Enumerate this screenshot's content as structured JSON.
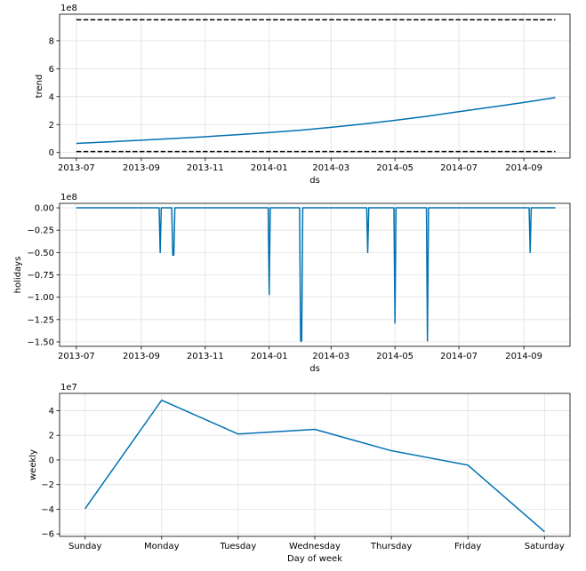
{
  "chart_data": [
    {
      "type": "line",
      "ylabel": "trend",
      "xlabel": "ds",
      "y_offset_label": "1e8",
      "y_scale": 100000000,
      "grid": true,
      "xlim": [
        "2013-06-15",
        "2014-10-15"
      ],
      "ylim": [
        -0.4,
        9.9
      ],
      "x_ticks": [
        "2013-07-01",
        "2013-09-01",
        "2013-11-01",
        "2014-01-01",
        "2014-03-01",
        "2014-05-01",
        "2014-07-01",
        "2014-09-01"
      ],
      "x_tick_labels": [
        "2013-07",
        "2013-09",
        "2013-11",
        "2014-01",
        "2014-03",
        "2014-05",
        "2014-07",
        "2014-09"
      ],
      "y_ticks": [
        0,
        2,
        4,
        6,
        8
      ],
      "y_tick_labels": [
        "0",
        "2",
        "4",
        "6",
        "8"
      ],
      "series": [
        {
          "style": "solid",
          "color": "#0072B2",
          "x": [
            "2013-07-01",
            "2013-08-01",
            "2013-09-01",
            "2013-10-01",
            "2013-11-01",
            "2013-12-01",
            "2014-01-01",
            "2014-02-01",
            "2014-03-01",
            "2014-04-01",
            "2014-05-01",
            "2014-06-01",
            "2014-07-01",
            "2014-08-01",
            "2014-09-01",
            "2014-10-01"
          ],
          "y": [
            0.65,
            0.76,
            0.88,
            1.0,
            1.13,
            1.27,
            1.43,
            1.6,
            1.8,
            2.04,
            2.3,
            2.6,
            2.92,
            3.25,
            3.58,
            3.93
          ]
        },
        {
          "style": "dashed",
          "color": "#000000",
          "x": [
            "2013-07-01",
            "2014-10-01"
          ],
          "y": [
            9.5,
            9.5
          ]
        },
        {
          "style": "dashed",
          "color": "#000000",
          "x": [
            "2013-07-01",
            "2014-10-01"
          ],
          "y": [
            0.07,
            0.07
          ]
        }
      ]
    },
    {
      "type": "line",
      "ylabel": "holidays",
      "xlabel": "ds",
      "y_offset_label": "1e8",
      "y_scale": 100000000,
      "grid": true,
      "xlim": [
        "2013-06-15",
        "2014-10-15"
      ],
      "ylim": [
        -1.55,
        0.05
      ],
      "x_ticks": [
        "2013-07-01",
        "2013-09-01",
        "2013-11-01",
        "2014-01-01",
        "2014-03-01",
        "2014-05-01",
        "2014-07-01",
        "2014-09-01"
      ],
      "x_tick_labels": [
        "2013-07",
        "2013-09",
        "2013-11",
        "2014-01",
        "2014-03",
        "2014-05",
        "2014-07",
        "2014-09"
      ],
      "y_ticks": [
        0,
        -0.25,
        -0.5,
        -0.75,
        -1.0,
        -1.25,
        -1.5
      ],
      "y_tick_labels": [
        "0.00",
        "−0.25",
        "−0.50",
        "−0.75",
        "−1.00",
        "−1.25",
        "−1.50"
      ],
      "series": [
        {
          "style": "solid",
          "color": "#0072B2",
          "x": [
            "2013-07-01",
            "2013-09-18",
            "2013-09-19",
            "2013-09-20",
            "2013-09-30",
            "2013-10-01",
            "2013-10-02",
            "2013-10-03",
            "2013-12-31",
            "2014-01-01",
            "2014-01-02",
            "2014-01-30",
            "2014-01-31",
            "2014-02-01",
            "2014-02-02",
            "2014-04-04",
            "2014-04-05",
            "2014-04-06",
            "2014-04-30",
            "2014-05-01",
            "2014-05-02",
            "2014-05-31",
            "2014-06-01",
            "2014-06-02",
            "2014-09-06",
            "2014-09-07",
            "2014-09-08",
            "2014-10-01"
          ],
          "y": [
            0,
            0,
            -0.5,
            0,
            0,
            -0.53,
            -0.53,
            0,
            0,
            -0.97,
            0,
            0,
            -1.49,
            -1.49,
            0,
            0,
            -0.5,
            0,
            0,
            -1.29,
            0,
            0,
            -1.49,
            0,
            0,
            -0.5,
            0,
            0
          ]
        }
      ]
    },
    {
      "type": "line",
      "ylabel": "weekly",
      "xlabel": "Day of week",
      "y_offset_label": "1e7",
      "y_scale": 10000000,
      "grid": true,
      "categories": [
        "Sunday",
        "Monday",
        "Tuesday",
        "Wednesday",
        "Thursday",
        "Friday",
        "Saturday"
      ],
      "ylim": [
        -6.2,
        5.4
      ],
      "y_ticks": [
        -6,
        -4,
        -2,
        0,
        2,
        4
      ],
      "y_tick_labels": [
        "−6",
        "−4",
        "−2",
        "0",
        "2",
        "4"
      ],
      "series": [
        {
          "style": "solid",
          "color": "#0072B2",
          "values": [
            -3.95,
            4.85,
            2.1,
            2.48,
            0.75,
            -0.42,
            -5.82
          ]
        }
      ]
    }
  ]
}
